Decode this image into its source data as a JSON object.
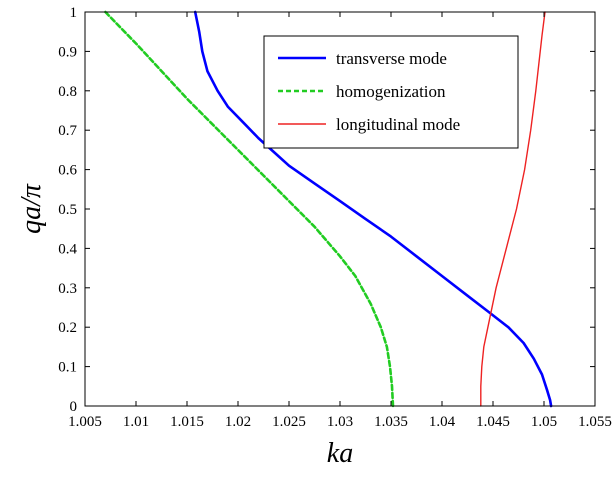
{
  "chart_data": {
    "type": "line",
    "xlabel": "ka",
    "ylabel": "qa/π",
    "xlim": [
      1.005,
      1.055
    ],
    "ylim": [
      0,
      1
    ],
    "xticks": [
      "1.005",
      "1.01",
      "1.015",
      "1.02",
      "1.025",
      "1.03",
      "1.035",
      "1.04",
      "1.045",
      "1.05",
      "1.055"
    ],
    "yticks": [
      "0",
      "0.1",
      "0.2",
      "0.3",
      "0.4",
      "0.5",
      "0.6",
      "0.7",
      "0.8",
      "0.9",
      "1"
    ],
    "grid": false,
    "legend_position": "top-right",
    "series": [
      {
        "name": "transverse mode",
        "color": "#0000ff",
        "style": "solid",
        "x": [
          1.0158,
          1.0162,
          1.0165,
          1.017,
          1.018,
          1.019,
          1.0205,
          1.022,
          1.0235,
          1.025,
          1.0275,
          1.03,
          1.0325,
          1.035,
          1.0375,
          1.04,
          1.0425,
          1.0445,
          1.0465,
          1.048,
          1.049,
          1.0498,
          1.0503,
          1.0506,
          1.0507
        ],
        "y": [
          1.0,
          0.95,
          0.9,
          0.85,
          0.8,
          0.76,
          0.72,
          0.68,
          0.645,
          0.61,
          0.565,
          0.52,
          0.475,
          0.43,
          0.38,
          0.33,
          0.28,
          0.24,
          0.2,
          0.16,
          0.12,
          0.08,
          0.04,
          0.015,
          0.0
        ]
      },
      {
        "name": "homogenization",
        "color": "#22cc22",
        "style": "dashed",
        "x": [
          1.007,
          1.0085,
          1.01,
          1.0125,
          1.015,
          1.0175,
          1.02,
          1.0225,
          1.025,
          1.0275,
          1.03,
          1.0315,
          1.033,
          1.034,
          1.0346,
          1.0349,
          1.0351,
          1.0352
        ],
        "y": [
          1.0,
          0.96,
          0.92,
          0.85,
          0.78,
          0.715,
          0.65,
          0.585,
          0.52,
          0.455,
          0.38,
          0.33,
          0.26,
          0.2,
          0.15,
          0.1,
          0.05,
          0.0
        ]
      },
      {
        "name": "longitudinal mode",
        "color": "#ee2222",
        "style": "solid",
        "x": [
          1.0438,
          1.0438,
          1.0439,
          1.0441,
          1.0445,
          1.0453,
          1.0463,
          1.0473,
          1.0481,
          1.0487,
          1.0492,
          1.0495,
          1.0498,
          1.0501
        ],
        "y": [
          0.0,
          0.05,
          0.1,
          0.15,
          0.2,
          0.3,
          0.4,
          0.5,
          0.6,
          0.7,
          0.8,
          0.87,
          0.94,
          1.0
        ]
      }
    ]
  }
}
